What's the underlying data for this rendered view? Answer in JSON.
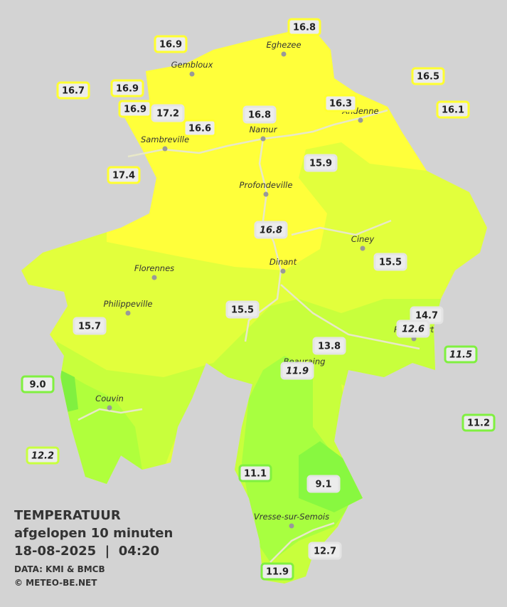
{
  "stations": [
    "16.8",
    "16.9",
    "16.5",
    "16.7",
    "16.9",
    "16.3",
    "16.1",
    "16.9",
    "17.2",
    "16.8",
    "16.6",
    "17.4",
    "15.9",
    "16.8",
    "15.5",
    "14.7",
    "12.6",
    "15.5",
    "15.7",
    "13.8",
    "11.5",
    "11.9",
    "9.0",
    "11.2",
    "12.2",
    "11.1",
    "9.1",
    "12.7",
    "11.9"
  ],
  "cities": [
    "Eghezee",
    "Gembloux",
    "Andenne",
    "Namur",
    "Sambreville",
    "Profondeville",
    "Ciney",
    "Dinant",
    "Florennes",
    "Philippeville",
    "Rochefort",
    "Beauraing",
    "Couvin",
    "Vresse-sur-Semois"
  ],
  "legend": {
    "title": "TEMPERATUUR",
    "subtitle": "afgelopen 10 minuten",
    "datetime": "18-08-2025  |  04:20",
    "source": "DATA: KMI & BMCB",
    "copyright": "© METEO-BE.NET"
  }
}
